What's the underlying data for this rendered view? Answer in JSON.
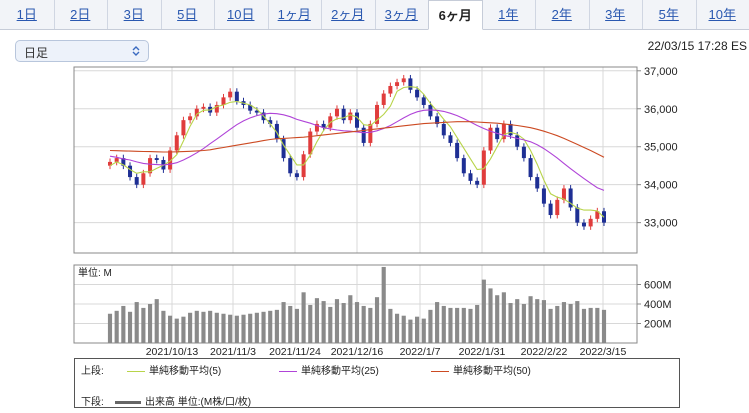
{
  "tabs": [
    {
      "label": "1日",
      "active": false
    },
    {
      "label": "2日",
      "active": false
    },
    {
      "label": "3日",
      "active": false
    },
    {
      "label": "5日",
      "active": false
    },
    {
      "label": "10日",
      "active": false
    },
    {
      "label": "1ヶ月",
      "active": false
    },
    {
      "label": "2ヶ月",
      "active": false
    },
    {
      "label": "3ヶ月",
      "active": false
    },
    {
      "label": "6ヶ月",
      "active": true
    },
    {
      "label": "1年",
      "active": false
    },
    {
      "label": "2年",
      "active": false
    },
    {
      "label": "3年",
      "active": false
    },
    {
      "label": "5年",
      "active": false
    },
    {
      "label": "10年",
      "active": false
    }
  ],
  "controls": {
    "interval_select": "日足",
    "datetime": "22/03/15 17:28 ES"
  },
  "colors": {
    "up": "#e03c3c",
    "down": "#1e2f94",
    "ma5": "#b8d44a",
    "ma25": "#b044d8",
    "ma50": "#cc4a22",
    "volume": "#8a8a8a",
    "grid": "#d8d8d8"
  },
  "legend": {
    "upper_label": "上段:",
    "lower_label": "下段:",
    "ma5": "単純移動平均(5)",
    "ma25": "単純移動平均(25)",
    "ma50": "単純移動平均(50)",
    "volume": "出来高 単位:(M株/口/枚)"
  },
  "chart_data": [
    {
      "type": "candlestick",
      "title": "",
      "x_labels": [
        "2021/10/13",
        "2021/11/3",
        "2021/11/24",
        "2021/12/16",
        "2022/1/7",
        "2022/1/31",
        "2022/2/22",
        "2022/3/15"
      ],
      "y_ticks": [
        "37,000",
        "36,000",
        "35,000",
        "34,000",
        "33,000"
      ],
      "ylim": [
        32200,
        37100
      ],
      "close": [
        34600,
        34700,
        34500,
        34200,
        34000,
        34300,
        34700,
        34650,
        34400,
        34900,
        35300,
        35700,
        35800,
        36000,
        36050,
        35900,
        36100,
        36300,
        36450,
        36200,
        36100,
        35950,
        35900,
        35700,
        35600,
        35200,
        34700,
        34300,
        34200,
        34800,
        35400,
        35600,
        35500,
        35800,
        36000,
        35700,
        35900,
        35500,
        35100,
        35600,
        36100,
        36400,
        36600,
        36700,
        36800,
        36500,
        36300,
        36100,
        35800,
        35600,
        35300,
        35100,
        34700,
        34300,
        34100,
        34000,
        34900,
        35500,
        35200,
        35600,
        35300,
        35000,
        34700,
        34200,
        33900,
        33500,
        33200,
        33600,
        33900,
        33400,
        33000,
        32900,
        33100,
        33300,
        33000
      ],
      "series": [
        {
          "name": "単純移動平均(5)",
          "values": [
            34500,
            34600,
            34520,
            34400,
            34300,
            34340,
            34340,
            34430,
            34510,
            34620,
            34790,
            35150,
            35540,
            35860,
            35960,
            35970,
            36060,
            36100,
            36170,
            36190,
            36150,
            36100,
            35990,
            35810,
            35600,
            35370,
            35040,
            34780,
            34520,
            34520,
            34780,
            35130,
            35430,
            35640,
            35740,
            35760,
            35840,
            35780,
            35580,
            35560,
            35700,
            35850,
            36070,
            36460,
            36560,
            36580,
            36560,
            36380,
            36140,
            35940,
            35720,
            35520,
            35240,
            34960,
            34680,
            34400,
            34420,
            34680,
            35000,
            35320,
            35380,
            35330,
            35200,
            34900,
            34540,
            34120,
            33760,
            33670,
            33620,
            33510,
            33380,
            33330,
            33330,
            33310,
            33140
          ]
        },
        {
          "name": "単純移動平均(25)",
          "values": [
            34750,
            34720,
            34680,
            34650,
            34600,
            34560,
            34540,
            34530,
            34520,
            34540,
            34580,
            34650,
            34740,
            34840,
            34950,
            35080,
            35200,
            35330,
            35460,
            35580,
            35680,
            35760,
            35820,
            35860,
            35880,
            35870,
            35840,
            35790,
            35720,
            35670,
            35620,
            35560,
            35500,
            35470,
            35440,
            35420,
            35410,
            35390,
            35370,
            35380,
            35420,
            35480,
            35560,
            35660,
            35760,
            35850,
            35920,
            35960,
            35970,
            35960,
            35930,
            35880,
            35820,
            35740,
            35650,
            35560,
            35480,
            35410,
            35350,
            35300,
            35260,
            35220,
            35180,
            35130,
            35050,
            34950,
            34830,
            34700,
            34560,
            34420,
            34290,
            34160,
            34040,
            33920,
            33850
          ]
        },
        {
          "name": "単純移動平均(50)",
          "values": [
            34900,
            34895,
            34890,
            34885,
            34880,
            34875,
            34870,
            34865,
            34860,
            34860,
            34865,
            34870,
            34880,
            34890,
            34900,
            34920,
            34950,
            34980,
            35010,
            35040,
            35070,
            35100,
            35130,
            35160,
            35190,
            35210,
            35220,
            35230,
            35240,
            35250,
            35270,
            35290,
            35310,
            35330,
            35350,
            35370,
            35390,
            35410,
            35430,
            35450,
            35470,
            35490,
            35510,
            35530,
            35550,
            35570,
            35590,
            35610,
            35620,
            35630,
            35640,
            35650,
            35660,
            35660,
            35660,
            35650,
            35640,
            35630,
            35620,
            35600,
            35580,
            35560,
            35530,
            35500,
            35460,
            35410,
            35350,
            35290,
            35220,
            35140,
            35060,
            34980,
            34900,
            34810,
            34720
          ]
        }
      ]
    },
    {
      "type": "bar",
      "title": "",
      "unit_label": "単位: M",
      "y_ticks": [
        "600M",
        "400M",
        "200M"
      ],
      "ylim": [
        0,
        800
      ],
      "series": [
        {
          "name": "出来高",
          "values": [
            300,
            330,
            380,
            320,
            420,
            360,
            400,
            450,
            330,
            280,
            250,
            270,
            310,
            330,
            320,
            330,
            310,
            300,
            290,
            280,
            290,
            300,
            310,
            320,
            330,
            340,
            420,
            380,
            350,
            520,
            390,
            460,
            430,
            370,
            450,
            410,
            490,
            420,
            380,
            360,
            470,
            780,
            350,
            300,
            280,
            240,
            270,
            250,
            340,
            420,
            380,
            360,
            360,
            360,
            350,
            390,
            650,
            560,
            490,
            520,
            410,
            450,
            400,
            480,
            450,
            440,
            350,
            380,
            420,
            400,
            430,
            350,
            360,
            360,
            340
          ]
        }
      ]
    }
  ]
}
